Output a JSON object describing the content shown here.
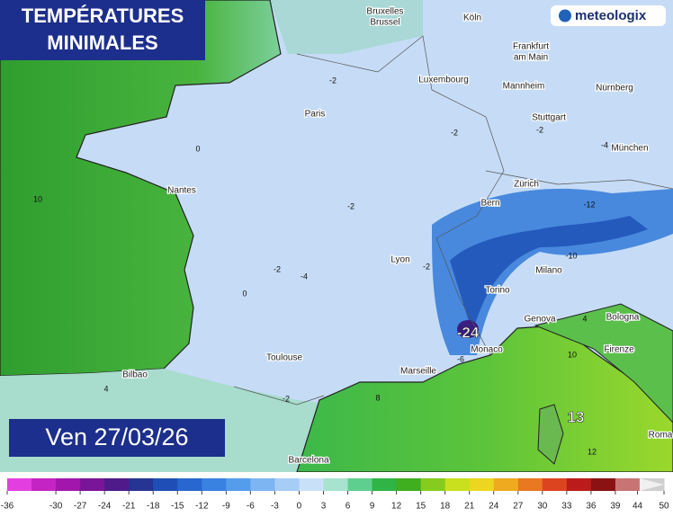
{
  "header": {
    "title_lines": [
      "TEMPÉRATURES",
      "MINIMALES"
    ],
    "date": "Ven 27/03/26",
    "brand": "meteologix"
  },
  "cities": [
    "Bruxelles",
    "Brussel",
    "Köln",
    "Frankfurt",
    "am Main",
    "Luxembourg",
    "Mannheim",
    "Nürnberg",
    "Paris",
    "Stuttgart",
    "München",
    "Nantes",
    "Zürich",
    "Bern",
    "Lyon",
    "Milano",
    "Torino",
    "Genova",
    "Bologna",
    "Monaco",
    "Firenze",
    "Toulouse",
    "Marseille",
    "Bilbao",
    "Roma",
    "Barcelona"
  ],
  "contour_labels": [
    10,
    -2,
    -2,
    0,
    -2,
    -2,
    -4,
    0,
    -2,
    -24,
    13,
    -6,
    8,
    -2,
    12,
    10,
    4,
    -10,
    -12,
    -2,
    -4,
    4
  ],
  "legend": {
    "ticks": [
      -36,
      -30,
      -27,
      -24,
      -21,
      -18,
      -15,
      -12,
      -9,
      -6,
      -3,
      0,
      3,
      6,
      9,
      12,
      15,
      18,
      21,
      24,
      27,
      30,
      33,
      36,
      39,
      44,
      50
    ],
    "colors": [
      "#e33fe0",
      "#c524c4",
      "#a316ae",
      "#7a1499",
      "#4f1a8a",
      "#263493",
      "#1f4fb6",
      "#2867cf",
      "#3a82e2",
      "#569ced",
      "#7db5f2",
      "#a6cdf6",
      "#c9e1f8",
      "#a8e3cf",
      "#5fcf90",
      "#2fb445",
      "#3fae1f",
      "#86cc1e",
      "#c9e01e",
      "#ecd61f",
      "#f0aa20",
      "#e97820",
      "#dc4420",
      "#bb1c1a",
      "#8a1212",
      "#c97474",
      "#cfcfcf"
    ]
  }
}
